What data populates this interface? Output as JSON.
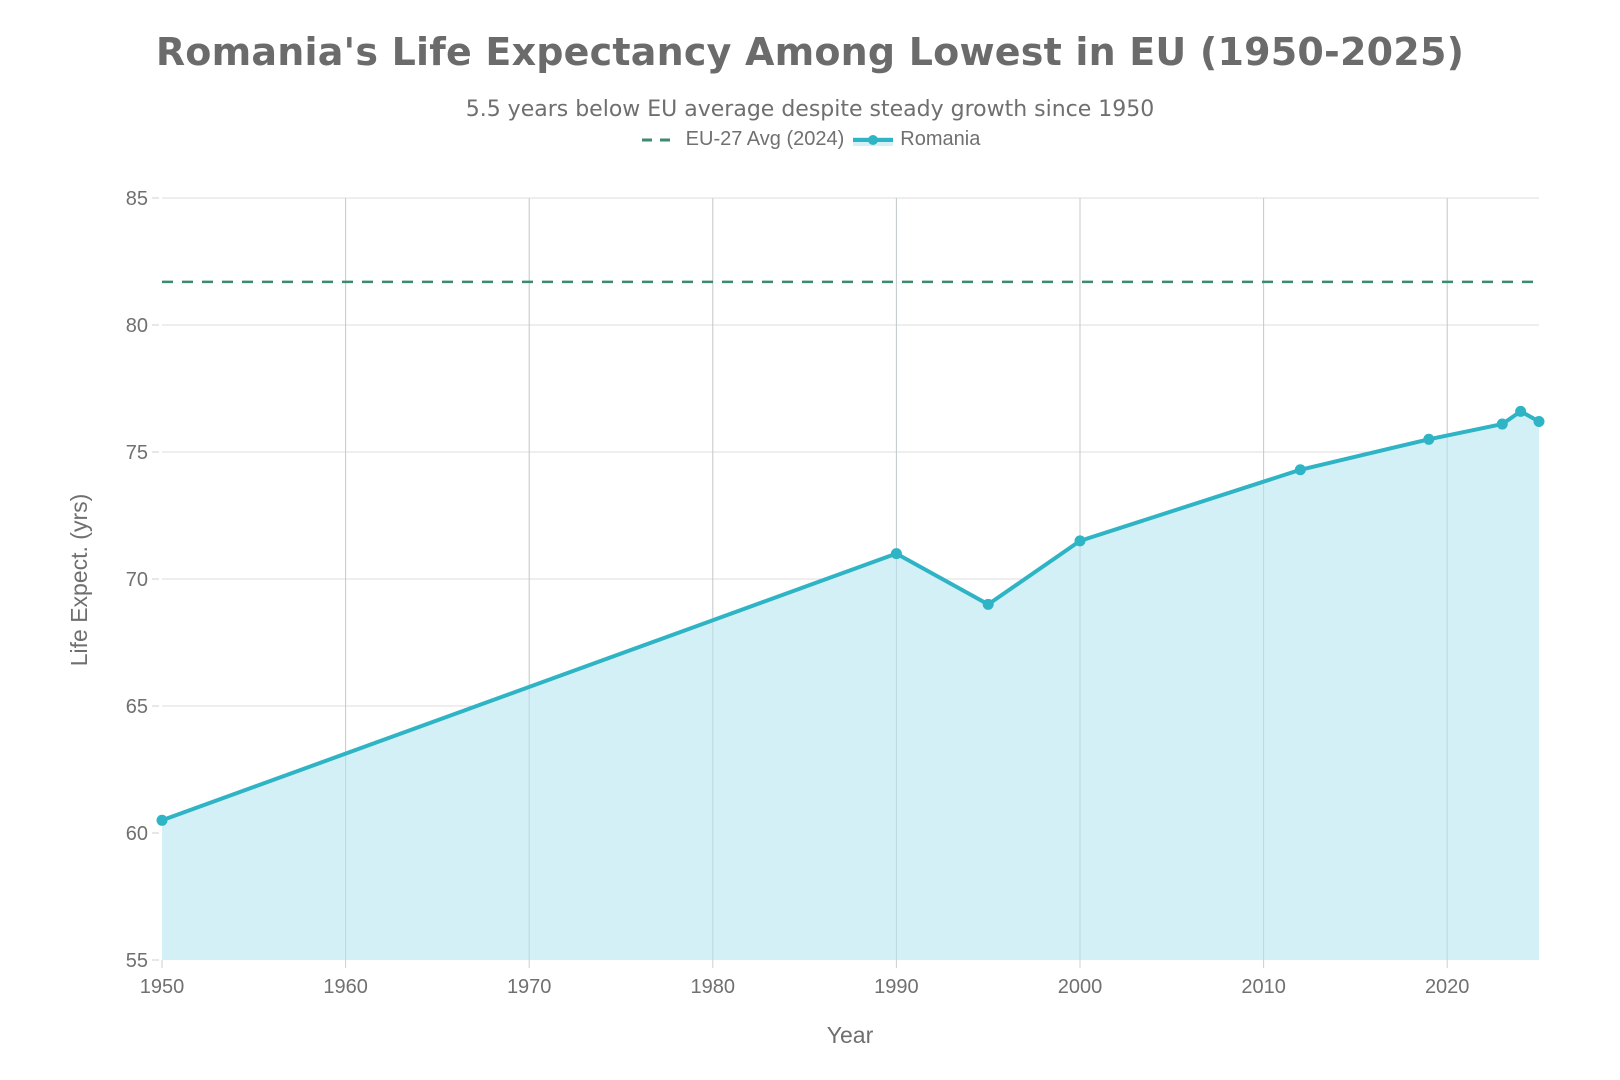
{
  "chart_data": {
    "type": "line",
    "title": "Romania's Life Expectancy Among Lowest in EU (1950-2025)",
    "subtitle": "5.5 years below EU average despite steady growth since 1950",
    "xlabel": "Year",
    "ylabel": "Life Expect. (yrs)",
    "xlim": [
      1950,
      2025
    ],
    "ylim": [
      55,
      85
    ],
    "xticks": [
      1950,
      1960,
      1970,
      1980,
      1990,
      2000,
      2010,
      2020
    ],
    "xtick_labels": [
      "1950",
      "1960",
      "1970",
      "1980",
      "1990",
      "2000",
      "2010",
      "2020"
    ],
    "yticks": [
      55,
      60,
      65,
      70,
      75,
      80,
      85
    ],
    "ytick_labels": [
      "55",
      "60",
      "65",
      "70",
      "75",
      "80",
      "85"
    ],
    "grid": true,
    "legend_position": "top-center",
    "legend": [
      "EU-27 Avg (2024)",
      "Romania"
    ],
    "series": [
      {
        "name": "Romania",
        "style": "line-markers-area",
        "color": "#2eb4c4",
        "fill_color": "#d3f0f6",
        "x": [
          1950,
          1990,
          1995,
          2000,
          2012,
          2019,
          2023,
          2024,
          2025
        ],
        "y": [
          60.5,
          71.0,
          69.0,
          71.5,
          74.3,
          75.5,
          76.1,
          76.6,
          76.2
        ]
      },
      {
        "name": "EU-27 Avg (2024)",
        "style": "dashed-horizontal",
        "color": "#3d8b6e",
        "y": 81.7
      }
    ]
  }
}
